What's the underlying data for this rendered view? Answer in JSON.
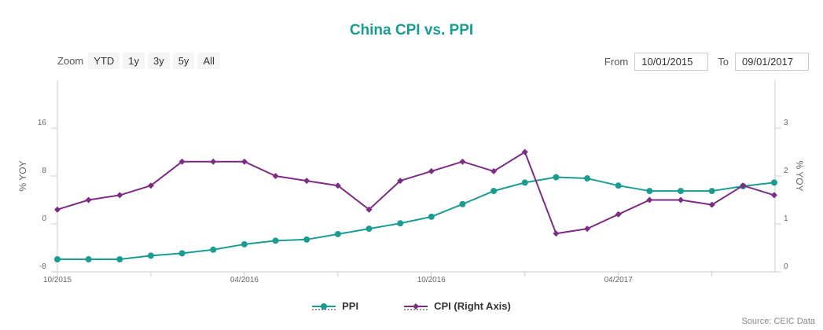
{
  "chart_data": {
    "type": "line",
    "title": "China CPI vs. PPI",
    "x_categories": [
      "10/2015",
      "11/2015",
      "12/2015",
      "01/2016",
      "02/2016",
      "03/2016",
      "04/2016",
      "05/2016",
      "06/2016",
      "07/2016",
      "08/2016",
      "09/2016",
      "10/2016",
      "11/2016",
      "12/2016",
      "01/2017",
      "02/2017",
      "03/2017",
      "04/2017",
      "05/2017",
      "06/2017",
      "07/2017",
      "08/2017",
      "09/2017"
    ],
    "x_tick_labels": [
      "10/2015",
      "04/2016",
      "10/2016",
      "04/2017"
    ],
    "y_left": {
      "label": "% YOY",
      "ticks": [
        "-8",
        "0",
        "8",
        "16"
      ],
      "range": [
        -8,
        24
      ]
    },
    "y_right": {
      "label": "% YOY",
      "ticks": [
        "0",
        "1",
        "2",
        "3"
      ],
      "range": [
        0,
        4
      ]
    },
    "series": [
      {
        "name": "PPI",
        "axis": "left",
        "color": "#1a9c92",
        "marker": "circle",
        "values": [
          -5.9,
          -5.9,
          -5.9,
          -5.3,
          -4.9,
          -4.3,
          -3.4,
          -2.8,
          -2.6,
          -1.7,
          -0.8,
          0.1,
          1.2,
          3.3,
          5.5,
          6.9,
          7.8,
          7.6,
          6.4,
          5.5,
          5.5,
          5.5,
          6.3,
          6.9
        ]
      },
      {
        "name": "CPI (Right Axis)",
        "axis": "right",
        "color": "#7b2d83",
        "marker": "diamond",
        "values": [
          1.3,
          1.5,
          1.6,
          1.8,
          2.3,
          2.3,
          2.3,
          2.0,
          1.9,
          1.8,
          1.3,
          1.9,
          2.1,
          2.3,
          2.1,
          2.5,
          0.8,
          0.9,
          1.2,
          1.5,
          1.5,
          1.4,
          1.8,
          1.6
        ]
      }
    ],
    "grid": false,
    "legend_position": "bottom"
  },
  "controls": {
    "zoom_label": "Zoom",
    "zoom_buttons": [
      "YTD",
      "1y",
      "3y",
      "5y",
      "All"
    ],
    "from_label": "From",
    "from_value": "10/01/2015",
    "to_label": "To",
    "to_value": "09/01/2017"
  },
  "source": "Source: CEIC Data",
  "legend": {
    "ppi": "PPI",
    "cpi": "CPI (Right Axis)"
  }
}
